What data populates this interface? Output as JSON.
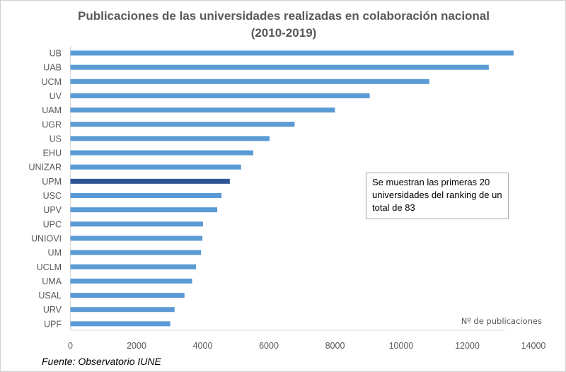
{
  "chart_data": {
    "type": "bar",
    "orientation": "horizontal",
    "title": "Publicaciones de las universidades realizadas en colaboración nacional",
    "subtitle": "(2010-2019)",
    "xlabel": "Nº de publicaciones",
    "categories": [
      "UB",
      "UAB",
      "UCM",
      "UV",
      "UAM",
      "UGR",
      "US",
      "EHU",
      "UNIZAR",
      "UPM",
      "USC",
      "UPV",
      "UPC",
      "UNIOVI",
      "UM",
      "UCLM",
      "UMA",
      "USAL",
      "URV",
      "UPF"
    ],
    "values": [
      13400,
      12650,
      10850,
      9050,
      8000,
      6780,
      6020,
      5530,
      5160,
      4820,
      4570,
      4440,
      4010,
      3990,
      3950,
      3800,
      3680,
      3450,
      3150,
      3020
    ],
    "xlim": [
      0,
      14000
    ],
    "xticks": [
      0,
      2000,
      4000,
      6000,
      8000,
      10000,
      12000,
      14000
    ],
    "highlight": "UPM",
    "colors": {
      "bar": "#5b9bd5",
      "highlight": "#2f5597"
    },
    "grid": false,
    "annotation": "Se muestran las primeras 20 universidades del ranking de un total de 83",
    "source": "Fuente: Observatorio IUNE"
  }
}
